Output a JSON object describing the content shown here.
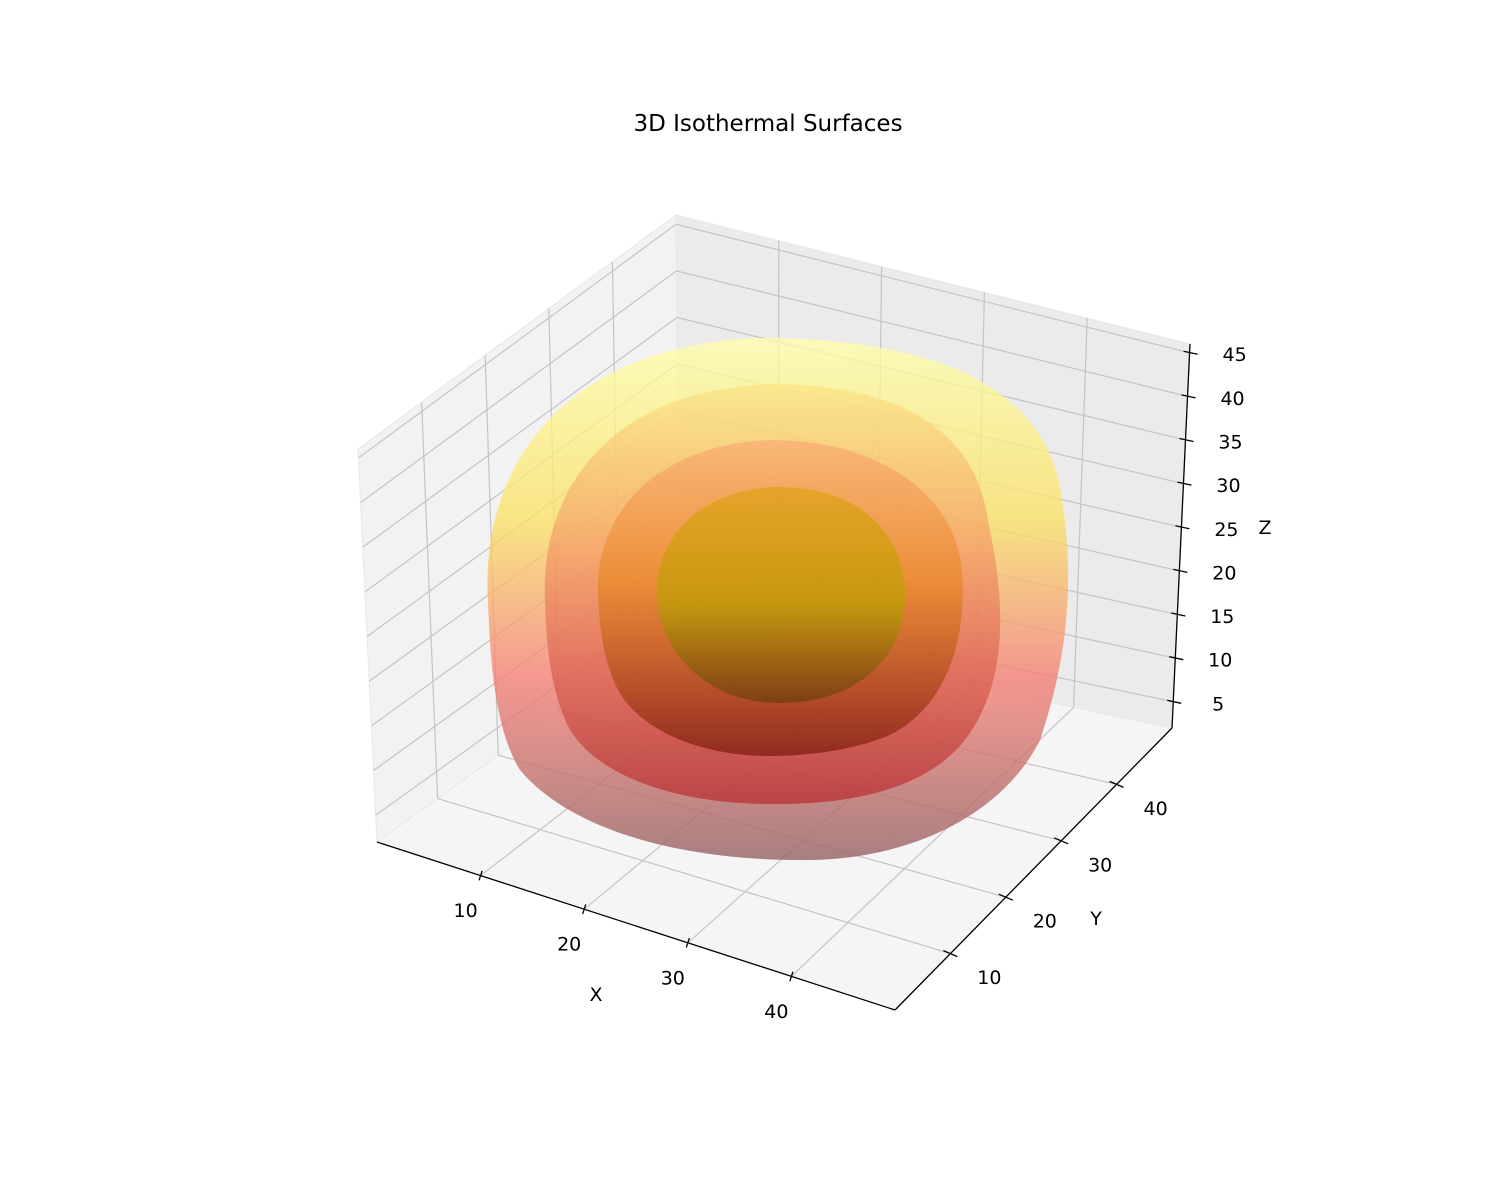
{
  "chart_data": {
    "type": "3d-isosurface",
    "title": "3D Isothermal Surfaces",
    "xlabel": "X",
    "ylabel": "Y",
    "zlabel": "Z",
    "x_ticks": [
      10,
      20,
      30,
      40
    ],
    "y_ticks": [
      10,
      20,
      30,
      40
    ],
    "z_ticks": [
      5,
      10,
      15,
      20,
      25,
      30,
      35,
      40,
      45
    ],
    "xlim": [
      0,
      50
    ],
    "ylim": [
      0,
      50
    ],
    "zlim": [
      2,
      46
    ],
    "grid": true,
    "colormap": "hot",
    "center": [
      25,
      25,
      25
    ],
    "surfaces": [
      {
        "radius": 24,
        "color": "#ffff55"
      },
      {
        "radius": 19,
        "color": "#ff8c1a"
      },
      {
        "radius": 14,
        "color": "#e03a20"
      },
      {
        "radius": 9,
        "color": "#c8a800"
      }
    ]
  }
}
